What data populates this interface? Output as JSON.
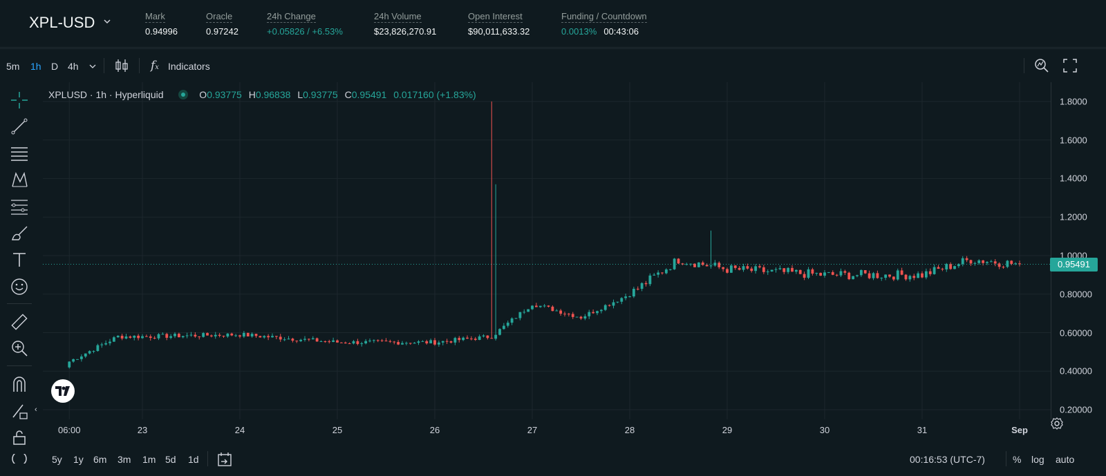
{
  "header": {
    "pair": "XPL-USD",
    "stats": [
      {
        "label": "Mark",
        "value": "0.94996",
        "value2": ""
      },
      {
        "label": "Oracle",
        "value": "0.97242",
        "value2": ""
      },
      {
        "label": "24h Change",
        "value": "+0.05826 / +6.53%",
        "value2": ""
      },
      {
        "label": "24h Volume",
        "value": "$23,826,270.91",
        "value2": ""
      },
      {
        "label": "Open Interest",
        "value": "$90,011,633.32",
        "value2": ""
      },
      {
        "label": "Funding / Countdown",
        "value": "0.0013%",
        "value2": "00:43:06"
      }
    ]
  },
  "toolbar": {
    "timeframes": [
      "5m",
      "1h",
      "D",
      "4h"
    ],
    "active_timeframe": "1h",
    "indicators_label": "Indicators"
  },
  "left_tools": [
    "crosshair-icon",
    "trend-line-icon",
    "horizontal-lines-icon",
    "pattern-icon",
    "fib-icon",
    "brush-icon",
    "text-icon",
    "emoji-icon",
    "ruler-icon",
    "zoom-in-icon",
    "magnet-icon",
    "pencil-lock-icon",
    "lock-icon"
  ],
  "legend": {
    "symbol": "XPLUSD · 1h · Hyperliquid",
    "o_label": "O",
    "o": "0.93775",
    "h_label": "H",
    "h": "0.96838",
    "l_label": "L",
    "l": "0.93775",
    "c_label": "C",
    "c": "0.95491",
    "change": "0.017160 (+1.83%)"
  },
  "price_tag": "0.95491",
  "bottom_bar": {
    "ranges": [
      "5y",
      "1y",
      "6m",
      "3m",
      "1m",
      "5d",
      "1d"
    ],
    "time": "00:16:53 (UTC-7)",
    "percent": "%",
    "log": "log",
    "auto": "auto"
  },
  "colors": {
    "up": "#26a69a",
    "down": "#ef5350",
    "background": "#0f1a1f",
    "accent": "#2aa5ff"
  },
  "chart_data": {
    "type": "candlestick",
    "title": "XPLUSD · 1h · Hyperliquid",
    "x_tick_labels": [
      "06:00",
      "23",
      "24",
      "25",
      "26",
      "27",
      "28",
      "29",
      "30",
      "31",
      "Sep"
    ],
    "y_tick_labels": [
      "0.20000",
      "0.40000",
      "0.60000",
      "0.80000",
      "1.0000",
      "1.2000",
      "1.4000",
      "1.6000",
      "1.8000"
    ],
    "ylim": [
      0.15,
      1.9
    ],
    "last_price": 0.95491,
    "notable_points": [
      {
        "date": "Aug 26",
        "wick_high": 1.8
      },
      {
        "date": "Aug 26",
        "wick_high": 1.37
      },
      {
        "date": "Aug 28",
        "high": 1.13
      }
    ],
    "close_path": [
      {
        "date": "Aug 22 06:00",
        "close": 0.45
      },
      {
        "date": "Aug 22 18:00",
        "close": 0.58
      },
      {
        "date": "Aug 23",
        "close": 0.58
      },
      {
        "date": "Aug 24",
        "close": 0.59
      },
      {
        "date": "Aug 25",
        "close": 0.55
      },
      {
        "date": "Aug 26",
        "close": 0.55
      },
      {
        "date": "Aug 26 14:00",
        "close": 0.58
      },
      {
        "date": "Aug 27",
        "close": 0.75
      },
      {
        "date": "Aug 27 12:00",
        "close": 0.68
      },
      {
        "date": "Aug 28",
        "close": 0.8
      },
      {
        "date": "Aug 28 12:00",
        "close": 0.98
      },
      {
        "date": "Aug 29",
        "close": 0.93
      },
      {
        "date": "Aug 30",
        "close": 0.9
      },
      {
        "date": "Aug 31",
        "close": 0.9
      },
      {
        "date": "Aug 31 12:00",
        "close": 0.98
      },
      {
        "date": "Sep 1",
        "close": 0.95491
      }
    ]
  }
}
